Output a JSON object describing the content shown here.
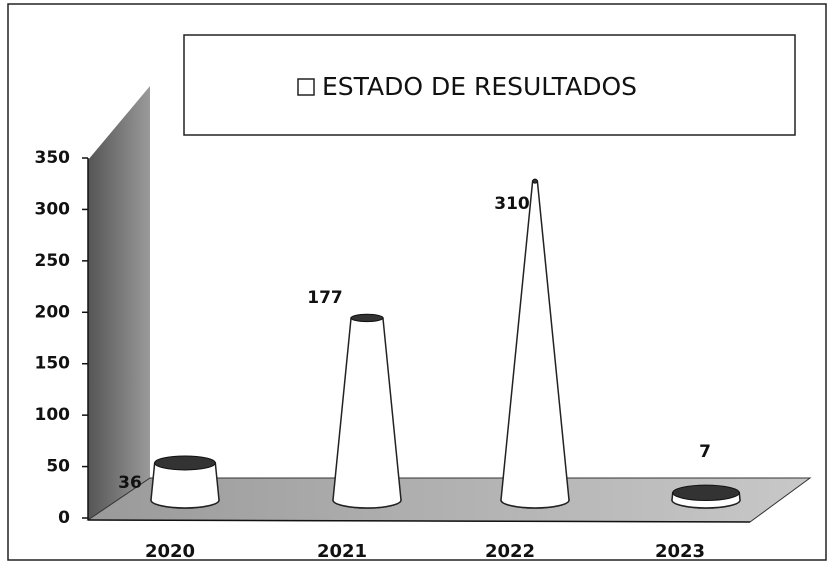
{
  "chart_data": {
    "type": "cone",
    "categories": [
      "2020",
      "2021",
      "2022",
      "2023"
    ],
    "series": [
      {
        "name": "ESTADO DE RESULTADOS",
        "color": "#ffffff",
        "values": [
          36,
          177,
          310,
          7
        ]
      }
    ],
    "ylim": [
      0,
      350
    ],
    "yticks": [
      0,
      50,
      100,
      150,
      200,
      250,
      300,
      350
    ],
    "legend": "top"
  }
}
